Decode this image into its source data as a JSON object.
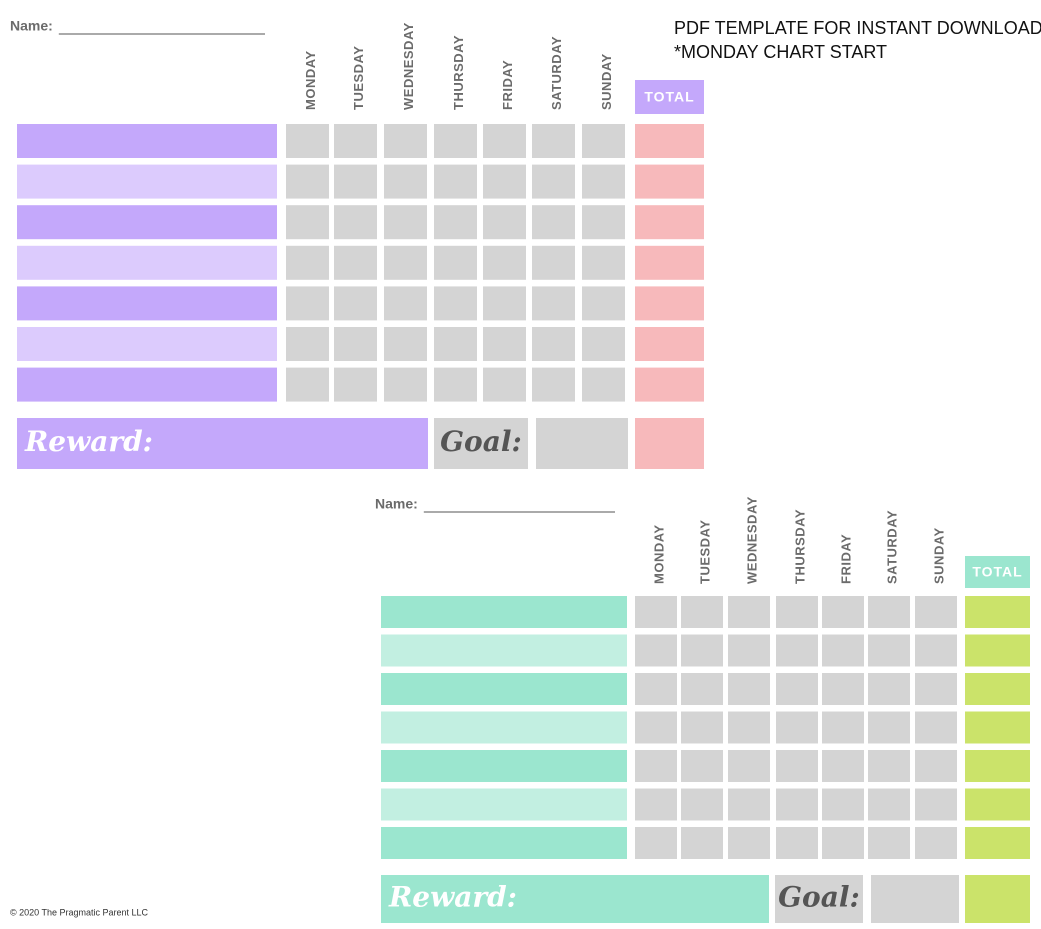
{
  "header": {
    "lines": [
      "PDF TEMPLATE FOR INSTANT DOWNLOAD",
      "*MONDAY CHART START"
    ]
  },
  "charts": [
    {
      "name_label": "Name:",
      "days": [
        "MONDAY",
        "TUESDAY",
        "WEDNESDAY",
        "THURSDAY",
        "FRIDAY",
        "SATURDAY",
        "SUNDAY"
      ],
      "total_label": "TOTAL",
      "reward_label": "Reward:",
      "goal_label": "Goal:"
    },
    {
      "name_label": "Name:",
      "days": [
        "MONDAY",
        "TUESDAY",
        "WEDNESDAY",
        "THURSDAY",
        "FRIDAY",
        "SATURDAY",
        "SUNDAY"
      ],
      "total_label": "TOTAL",
      "reward_label": "Reward:",
      "goal_label": "Goal:"
    }
  ],
  "footer": "© 2020 The Pragmatic Parent LLC"
}
